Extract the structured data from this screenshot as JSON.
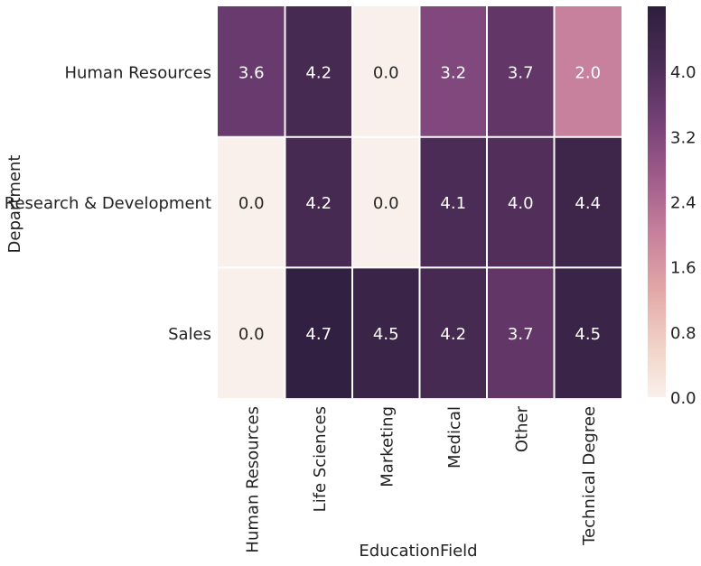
{
  "chart_data": {
    "type": "heatmap",
    "xlabel": "EducationField",
    "ylabel": "Department",
    "x_categories": [
      "Human Resources",
      "Life Sciences",
      "Marketing",
      "Medical",
      "Other",
      "Technical Degree"
    ],
    "y_categories": [
      "Human Resources",
      "Research & Development",
      "Sales"
    ],
    "values": [
      [
        3.6,
        4.2,
        0.0,
        3.2,
        3.7,
        2.0
      ],
      [
        0.0,
        4.2,
        0.0,
        4.1,
        4.0,
        4.4
      ],
      [
        0.0,
        4.7,
        4.5,
        4.2,
        3.7,
        4.5
      ]
    ],
    "cell_labels": [
      [
        "3.6",
        "4.2",
        "0.0",
        "3.2",
        "3.7",
        "2.0"
      ],
      [
        "0.0",
        "4.2",
        "0.0",
        "4.1",
        "4.0",
        "4.4"
      ],
      [
        "0.0",
        "4.7",
        "4.5",
        "4.2",
        "3.7",
        "4.5"
      ]
    ],
    "colorbar": {
      "min": 0.0,
      "max": 4.8,
      "ticks": [
        0.0,
        0.8,
        1.6,
        2.4,
        3.2,
        4.0
      ],
      "tick_labels": [
        "0.0",
        "0.8",
        "1.6",
        "2.4",
        "3.2",
        "4.0"
      ]
    },
    "colormap": [
      "#faf0eb",
      "#f0cfc4",
      "#e0a4a6",
      "#c57e9b",
      "#9d5a8a",
      "#723f75",
      "#4a2c55",
      "#2d1e3e"
    ],
    "grid_color": "#ffffff"
  }
}
